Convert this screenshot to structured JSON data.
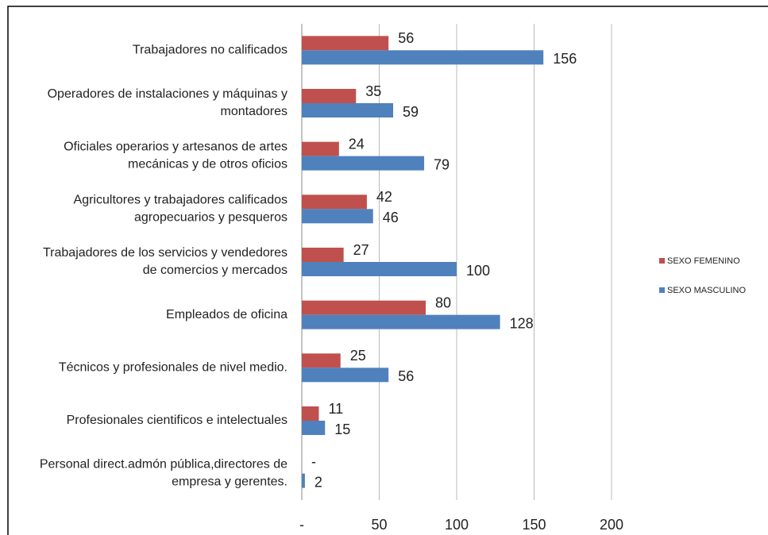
{
  "chart_data": {
    "type": "bar",
    "orientation": "horizontal",
    "categories": [
      "Trabajadores no calificados",
      "Operadores de instalaciones y máquinas y\nmontadores",
      "Oficiales operarios y artesanos de artes\nmecánicas y de otros oficios",
      "Agricultores y trabajadores calificados\nagropecuarios y pesqueros",
      "Trabajadores de los servicios y vendedores\nde comercios y mercados",
      "Empleados de oficina",
      "Técnicos y profesionales de nivel medio.",
      "Profesionales cientificos e intelectuales",
      "Personal direct.admón pública,directores de\nempresa y gerentes."
    ],
    "series": [
      {
        "name": "SEXO FEMENINO",
        "color": "#c0504d",
        "values": [
          56,
          35,
          24,
          42,
          27,
          80,
          25,
          11,
          0
        ],
        "value_labels": [
          "56",
          "35",
          "24",
          "42",
          "27",
          "80",
          "25",
          "11",
          "-"
        ]
      },
      {
        "name": "SEXO MASCULINO",
        "color": "#4f81bd",
        "values": [
          156,
          59,
          79,
          46,
          100,
          128,
          56,
          15,
          2
        ]
      }
    ],
    "xlim": [
      0,
      200
    ],
    "xticks": [
      {
        "value": 0,
        "label": "-"
      },
      50,
      100,
      150,
      200
    ],
    "grid": true,
    "legend": "right"
  }
}
